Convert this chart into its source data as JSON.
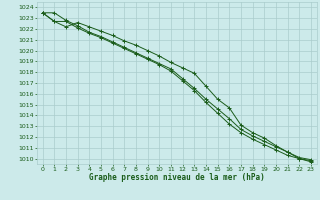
{
  "x": [
    0,
    1,
    2,
    3,
    4,
    5,
    6,
    7,
    8,
    9,
    10,
    11,
    12,
    13,
    14,
    15,
    16,
    17,
    18,
    19,
    20,
    21,
    22,
    23
  ],
  "line1": [
    1023.5,
    1023.5,
    1022.8,
    1022.3,
    1021.7,
    1021.3,
    1020.8,
    1020.3,
    1019.8,
    1019.3,
    1018.8,
    1018.3,
    1017.4,
    1016.5,
    1015.5,
    1014.6,
    1013.7,
    1012.7,
    1012.1,
    1011.6,
    1011.1,
    1010.6,
    1010.1,
    1009.9
  ],
  "line2": [
    1023.5,
    1022.7,
    1022.7,
    1022.1,
    1021.6,
    1021.2,
    1020.7,
    1020.2,
    1019.7,
    1019.2,
    1018.7,
    1018.1,
    1017.2,
    1016.3,
    1015.2,
    1014.2,
    1013.2,
    1012.4,
    1011.8,
    1011.3,
    1010.8,
    1010.3,
    1010.0,
    1009.7
  ],
  "line3": [
    1023.5,
    1022.7,
    1022.2,
    1022.6,
    1022.2,
    1021.8,
    1021.4,
    1020.9,
    1020.5,
    1020.0,
    1019.5,
    1018.9,
    1018.4,
    1017.9,
    1016.7,
    1015.5,
    1014.7,
    1013.1,
    1012.4,
    1011.9,
    1011.2,
    1010.6,
    1010.0,
    1009.8
  ],
  "bg_color": "#cceaea",
  "grid_color": "#aacccc",
  "line_color": "#1a5c1a",
  "title": "Graphe pression niveau de la mer (hPa)",
  "ylim_min": 1009.5,
  "ylim_max": 1024.5,
  "xlim_min": -0.5,
  "xlim_max": 23.5,
  "yticks": [
    1010,
    1011,
    1012,
    1013,
    1014,
    1015,
    1016,
    1017,
    1018,
    1019,
    1020,
    1021,
    1022,
    1023,
    1024
  ],
  "xticks": [
    0,
    1,
    2,
    3,
    4,
    5,
    6,
    7,
    8,
    9,
    10,
    11,
    12,
    13,
    14,
    15,
    16,
    17,
    18,
    19,
    20,
    21,
    22,
    23
  ],
  "tick_fontsize": 4.5,
  "title_fontsize": 5.5,
  "line_width": 0.7,
  "marker_size": 2.5
}
